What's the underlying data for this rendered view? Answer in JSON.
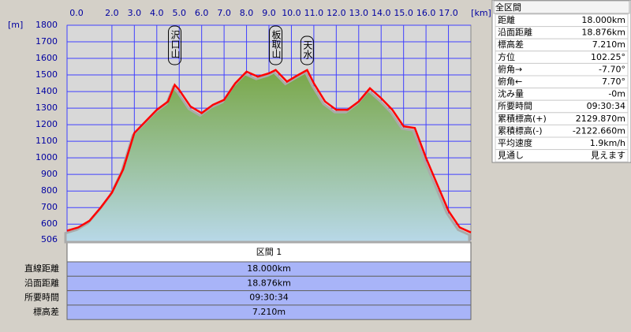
{
  "chart_data": {
    "type": "area",
    "x_unit": "[km]",
    "y_unit": "[m]",
    "x": [
      0,
      0.5,
      1.0,
      1.5,
      2.0,
      2.5,
      3.0,
      3.5,
      4.0,
      4.5,
      4.8,
      5.0,
      5.5,
      6.0,
      6.5,
      7.0,
      7.5,
      8.0,
      8.5,
      9.0,
      9.3,
      9.8,
      10.3,
      10.7,
      11.0,
      11.5,
      12.0,
      12.5,
      13.0,
      13.5,
      14.0,
      14.5,
      15.0,
      15.5,
      16.0,
      16.5,
      17.0,
      17.5,
      18.0
    ],
    "values": [
      560,
      580,
      620,
      700,
      790,
      930,
      1150,
      1220,
      1290,
      1340,
      1440,
      1410,
      1310,
      1270,
      1320,
      1350,
      1450,
      1520,
      1490,
      1510,
      1530,
      1460,
      1500,
      1530,
      1450,
      1340,
      1290,
      1290,
      1340,
      1420,
      1360,
      1290,
      1190,
      1180,
      1000,
      840,
      680,
      580,
      550
    ],
    "color": "#ff0000",
    "xlim": [
      0,
      18
    ],
    "ylim": [
      506,
      1800
    ],
    "xticks": [
      {
        "value": 0,
        "label": "0.0"
      },
      {
        "value": 2,
        "label": "2.0"
      },
      {
        "value": 3,
        "label": "3.0"
      },
      {
        "value": 4,
        "label": "4.0"
      },
      {
        "value": 5,
        "label": "5.0"
      },
      {
        "value": 6,
        "label": "6.0"
      },
      {
        "value": 7,
        "label": "7.0"
      },
      {
        "value": 8,
        "label": "8.0"
      },
      {
        "value": 9,
        "label": "9.0"
      },
      {
        "value": 10,
        "label": "10.0"
      },
      {
        "value": 11,
        "label": "11.0"
      },
      {
        "value": 12,
        "label": "12.0"
      },
      {
        "value": 13,
        "label": "13.0"
      },
      {
        "value": 14,
        "label": "14.0"
      },
      {
        "value": 15,
        "label": "15.0"
      },
      {
        "value": 16,
        "label": "16.0"
      },
      {
        "value": 17,
        "label": "17.0"
      }
    ],
    "yticks": [
      506,
      600,
      700,
      800,
      900,
      1000,
      1100,
      1200,
      1300,
      1400,
      1500,
      1600,
      1700,
      1800
    ],
    "grid": true,
    "annotations": [
      {
        "text": "沢口山",
        "x": 4.8
      },
      {
        "text": "板取山",
        "x": 9.3
      },
      {
        "text": "天水",
        "x": 10.7
      }
    ]
  },
  "summary_panel": {
    "title": "全区間",
    "rows": [
      [
        "距離",
        "18.000km"
      ],
      [
        "沿面距離",
        "18.876km"
      ],
      [
        "標高差",
        "7.210m"
      ],
      [
        "方位",
        "102.25°"
      ],
      [
        "俯角→",
        "-7.70°"
      ],
      [
        "俯角←",
        "7.70°"
      ],
      [
        "沈み量",
        "-0m"
      ],
      [
        "所要時間",
        "09:30:34"
      ],
      [
        "累積標高(+)",
        "2129.870m"
      ],
      [
        "累積標高(-)",
        "-2122.660m"
      ],
      [
        "平均速度",
        "1.9km/h"
      ],
      [
        "見通し",
        "見えます"
      ]
    ]
  },
  "section_table": {
    "header": "区間 1",
    "rows": [
      [
        "直線距離",
        "18.000km"
      ],
      [
        "沿面距離",
        "18.876km"
      ],
      [
        "所要時間",
        "09:30:34"
      ],
      [
        "標高差",
        "7.210m"
      ]
    ]
  }
}
